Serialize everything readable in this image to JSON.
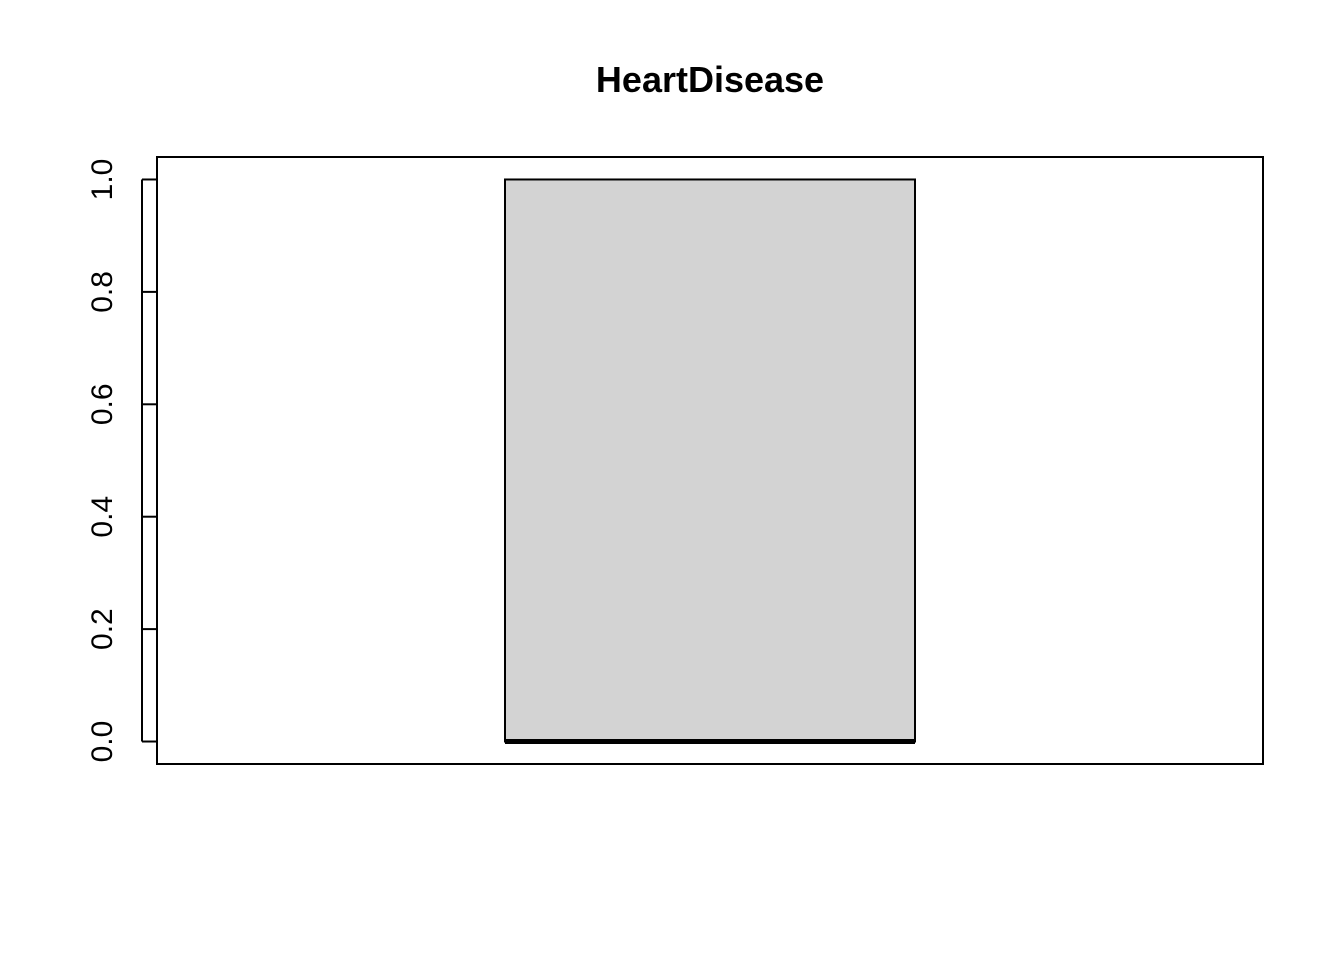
{
  "chart_data": {
    "type": "boxplot",
    "title": "HeartDisease",
    "xlabel": "",
    "ylabel": "",
    "ylim": [
      -0.04,
      1.04
    ],
    "y_ticks": [
      0.0,
      0.2,
      0.4,
      0.6,
      0.8,
      1.0
    ],
    "y_tick_labels": [
      "0.0",
      "0.2",
      "0.4",
      "0.6",
      "0.8",
      "1.0"
    ],
    "grid": false,
    "legend": "none",
    "box": {
      "min": 0,
      "q1": 0,
      "median": 0,
      "q3": 1,
      "max": 1,
      "fill_color": "#d3d3d3",
      "border_color": "#000000"
    }
  }
}
